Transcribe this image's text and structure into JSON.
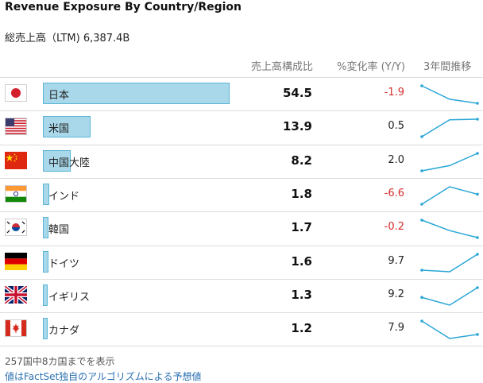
{
  "header": {
    "title": "Revenue Exposure By Country/Region",
    "subtitle": "総売上高（LTM) 6,387.4B",
    "col_share": "売上高構成比",
    "col_change": "%変化率 (Y/Y)",
    "col_trend": "3年間推移"
  },
  "colors": {
    "bar_fill": "#a9d8ea",
    "bar_border": "#5ab5d6",
    "negative": "#d62b2b",
    "sparkline": "#2aa6d6"
  },
  "rows": [
    {
      "flag": "japan-flag-icon",
      "name": "日本",
      "share": "54.5",
      "share_value": 54.5,
      "change": "-1.9",
      "negative": true,
      "trend": [
        57.5,
        55.2,
        54.5
      ]
    },
    {
      "flag": "usa-flag-icon",
      "name": "米国",
      "share": "13.9",
      "share_value": 13.9,
      "change": "0.5",
      "negative": false,
      "trend": [
        10.8,
        13.8,
        13.9
      ]
    },
    {
      "flag": "china-flag-icon",
      "name": "中国大陸",
      "share": "8.2",
      "share_value": 8.2,
      "change": "2.0",
      "negative": false,
      "trend": [
        7.2,
        7.5,
        8.2
      ]
    },
    {
      "flag": "india-flag-icon",
      "name": "インド",
      "share": "1.8",
      "share_value": 1.8,
      "change": "-6.6",
      "negative": true,
      "trend": [
        1.6,
        1.95,
        1.8
      ]
    },
    {
      "flag": "korea-flag-icon",
      "name": "韓国",
      "share": "1.7",
      "share_value": 1.7,
      "change": "-0.2",
      "negative": true,
      "trend": [
        1.95,
        1.8,
        1.7
      ]
    },
    {
      "flag": "germany-flag-icon",
      "name": "ドイツ",
      "share": "1.6",
      "share_value": 1.6,
      "change": "9.7",
      "negative": false,
      "trend": [
        1.4,
        1.38,
        1.6
      ]
    },
    {
      "flag": "uk-flag-icon",
      "name": "イギリス",
      "share": "1.3",
      "share_value": 1.3,
      "change": "9.2",
      "negative": false,
      "trend": [
        1.2,
        1.12,
        1.3
      ]
    },
    {
      "flag": "canada-flag-icon",
      "name": "カナダ",
      "share": "1.2",
      "share_value": 1.2,
      "change": "7.9",
      "negative": false,
      "trend": [
        1.25,
        1.12,
        1.15
      ]
    }
  ],
  "footer": {
    "note": "257国中8カ国までを表示",
    "link": "値はFactSet独自のアルゴリズムによる予想値"
  }
}
